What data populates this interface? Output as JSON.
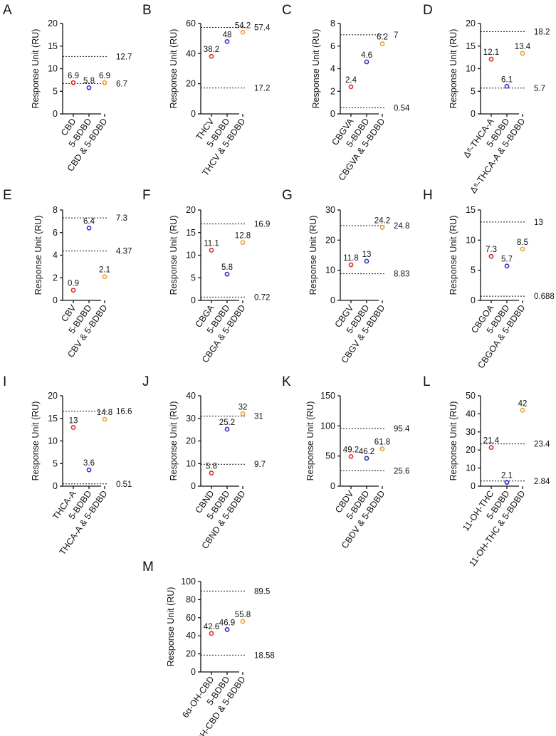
{
  "figure": {
    "series_colors": {
      "ligand": "#e02a2a",
      "protein": "#2a32c8",
      "complex": "#f0a030"
    }
  },
  "chart_data": [
    {
      "panel": "A",
      "type": "scatter",
      "ylabel": "Response Unit (RU)",
      "ylim": [
        0,
        20
      ],
      "yticks": [
        "0",
        "5",
        "10",
        "15",
        "20"
      ],
      "categories": [
        "CBD",
        "5-BDBD",
        "CBD & 5-BDBD"
      ],
      "values": [
        6.9,
        5.8,
        6.9
      ],
      "value_labels": [
        "6.9",
        "5.8",
        "6.9"
      ],
      "reference_lines": [
        {
          "value": 12.7,
          "label": "12.7"
        },
        {
          "value": 6.7,
          "label": "6.7"
        }
      ]
    },
    {
      "panel": "B",
      "type": "scatter",
      "ylabel": "Response Unit (RU)",
      "ylim": [
        0,
        60
      ],
      "yticks": [
        "0",
        "20",
        "40",
        "60"
      ],
      "categories": [
        "THCV",
        "5-BDBD",
        "THCV & 5-BDBD"
      ],
      "values": [
        38.2,
        48,
        54.2
      ],
      "value_labels": [
        "38.2",
        "48",
        "54.2"
      ],
      "reference_lines": [
        {
          "value": 57.4,
          "label": "57.4"
        },
        {
          "value": 17.2,
          "label": "17.2"
        }
      ]
    },
    {
      "panel": "C",
      "type": "scatter",
      "ylabel": "Response Unit (RU)",
      "ylim": [
        0,
        8
      ],
      "yticks": [
        "0",
        "2",
        "4",
        "6",
        "8"
      ],
      "categories": [
        "CBGVA",
        "5-BDBD",
        "CBGVA & 5-BDBD"
      ],
      "values": [
        2.4,
        4.6,
        6.2
      ],
      "value_labels": [
        "2.4",
        "4.6",
        "6.2"
      ],
      "reference_lines": [
        {
          "value": 7,
          "label": "7"
        },
        {
          "value": 0.54,
          "label": "0.54"
        }
      ]
    },
    {
      "panel": "D",
      "type": "scatter",
      "ylabel": "Response Unit (RU)",
      "ylim": [
        0,
        20
      ],
      "yticks": [
        "0",
        "5",
        "10",
        "15",
        "20"
      ],
      "categories": [
        "Δ⁸-THCA-A",
        "5-BDBD",
        "Δ⁸-THCA-A & 5-BDBD"
      ],
      "values": [
        12.1,
        6.1,
        13.4
      ],
      "value_labels": [
        "12.1",
        "6.1",
        "13.4"
      ],
      "reference_lines": [
        {
          "value": 18.2,
          "label": "18.2"
        },
        {
          "value": 5.7,
          "label": "5.7"
        }
      ]
    },
    {
      "panel": "E",
      "type": "scatter",
      "ylabel": "Response Unit (RU)",
      "ylim": [
        0,
        8
      ],
      "yticks": [
        "0",
        "2",
        "4",
        "6",
        "8"
      ],
      "categories": [
        "CBV",
        "5-BDBD",
        "CBV & 5-BDBD"
      ],
      "values": [
        0.9,
        6.4,
        2.1
      ],
      "value_labels": [
        "0.9",
        "6.4",
        "2.1"
      ],
      "reference_lines": [
        {
          "value": 7.3,
          "label": "7.3"
        },
        {
          "value": 4.37,
          "label": "4.37"
        }
      ]
    },
    {
      "panel": "F",
      "type": "scatter",
      "ylabel": "Response Unit (RU)",
      "ylim": [
        0,
        20
      ],
      "yticks": [
        "0",
        "5",
        "10",
        "15",
        "20"
      ],
      "categories": [
        "CBGA",
        "5-BDBD",
        "CBGA & 5-BDBD"
      ],
      "values": [
        11.1,
        5.8,
        12.8
      ],
      "value_labels": [
        "11.1",
        "5.8",
        "12.8"
      ],
      "reference_lines": [
        {
          "value": 16.9,
          "label": "16.9"
        },
        {
          "value": 0.72,
          "label": "0.72"
        }
      ]
    },
    {
      "panel": "G",
      "type": "scatter",
      "ylabel": "Response Unit (RU)",
      "ylim": [
        0,
        30
      ],
      "yticks": [
        "0",
        "10",
        "20",
        "30"
      ],
      "categories": [
        "CBGV",
        "5-BDBD",
        "CBGV & 5-BDBD"
      ],
      "values": [
        11.8,
        13,
        24.2
      ],
      "value_labels": [
        "11.8",
        "13",
        "24.2"
      ],
      "reference_lines": [
        {
          "value": 24.8,
          "label": "24.8"
        },
        {
          "value": 8.83,
          "label": "8.83"
        }
      ]
    },
    {
      "panel": "H",
      "type": "scatter",
      "ylabel": "Response Unit (RU)",
      "ylim": [
        0,
        15
      ],
      "yticks": [
        "0",
        "5",
        "10",
        "15"
      ],
      "categories": [
        "CBGOA",
        "5-BDBD",
        "CBGOA & 5-BDBD"
      ],
      "values": [
        7.3,
        5.7,
        8.5
      ],
      "value_labels": [
        "7.3",
        "5.7",
        "8.5"
      ],
      "reference_lines": [
        {
          "value": 13,
          "label": "13"
        },
        {
          "value": 0.688,
          "label": "0.688"
        }
      ]
    },
    {
      "panel": "I",
      "type": "scatter",
      "ylabel": "Response Unit (RU)",
      "ylim": [
        0,
        20
      ],
      "yticks": [
        "0",
        "5",
        "10",
        "15",
        "20"
      ],
      "categories": [
        "THCA-A",
        "5-BDBD",
        "THCA-A & 5-BDBD"
      ],
      "values": [
        13,
        3.6,
        14.8
      ],
      "value_labels": [
        "13",
        "3.6",
        "14.8"
      ],
      "reference_lines": [
        {
          "value": 16.6,
          "label": "16.6"
        },
        {
          "value": 0.51,
          "label": "0.51"
        }
      ]
    },
    {
      "panel": "J",
      "type": "scatter",
      "ylabel": "Response Unit (RU)",
      "ylim": [
        0,
        40
      ],
      "yticks": [
        "0",
        "10",
        "20",
        "30",
        "40"
      ],
      "categories": [
        "CBND",
        "5-BDBD",
        "CBND & 5-BDBD"
      ],
      "values": [
        5.8,
        25.2,
        32
      ],
      "value_labels": [
        "5.8",
        "25.2",
        "32"
      ],
      "reference_lines": [
        {
          "value": 31,
          "label": "31"
        },
        {
          "value": 9.7,
          "label": "9.7"
        }
      ]
    },
    {
      "panel": "K",
      "type": "scatter",
      "ylabel": "Response Unit (RU)",
      "ylim": [
        0,
        150
      ],
      "yticks": [
        "0",
        "50",
        "100",
        "150"
      ],
      "categories": [
        "CBDV",
        "5-BDBD",
        "CBDV & 5-BDBD"
      ],
      "values": [
        49.2,
        46.2,
        61.8
      ],
      "value_labels": [
        "49.2",
        "46.2",
        "61.8"
      ],
      "reference_lines": [
        {
          "value": 95.4,
          "label": "95.4"
        },
        {
          "value": 25.6,
          "label": "25.6"
        }
      ]
    },
    {
      "panel": "L",
      "type": "scatter",
      "ylabel": "Response Unit (RU)",
      "ylim": [
        0,
        50
      ],
      "yticks": [
        "0",
        "10",
        "20",
        "30",
        "40",
        "50"
      ],
      "categories": [
        "11-OH-THC",
        "5-BDBD",
        "11-OH-THC & 5-BDBD"
      ],
      "values": [
        21.4,
        2.1,
        42
      ],
      "value_labels": [
        "21.4",
        "2.1",
        "42"
      ],
      "reference_lines": [
        {
          "value": 23.4,
          "label": "23.4"
        },
        {
          "value": 2.84,
          "label": "2.84"
        }
      ]
    },
    {
      "panel": "M",
      "type": "scatter",
      "ylabel": "Response Unit (RU)",
      "ylim": [
        0,
        100
      ],
      "yticks": [
        "0",
        "20",
        "40",
        "60",
        "80",
        "100"
      ],
      "categories": [
        "6α-OH-CBD",
        "5-BDBD",
        "6α-OH-CBD & 5-BDBD"
      ],
      "values": [
        42.6,
        46.9,
        55.8
      ],
      "value_labels": [
        "42.6",
        "46.9",
        "55.8"
      ],
      "reference_lines": [
        {
          "value": 89.5,
          "label": "89.5"
        },
        {
          "value": 18.58,
          "label": "18.58"
        }
      ]
    }
  ]
}
